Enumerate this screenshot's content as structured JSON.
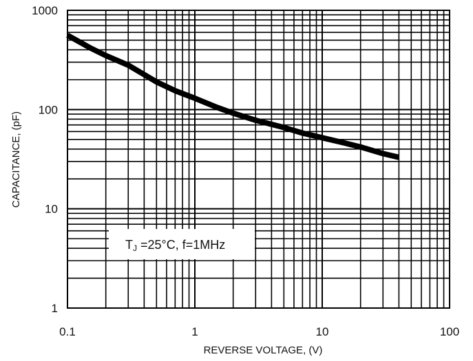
{
  "chart_data": {
    "type": "line",
    "title": "",
    "xlabel": "REVERSE VOLTAGE, (V)",
    "ylabel": "CAPACITANCE, (pF)",
    "xscale": "log",
    "yscale": "log",
    "xlim": [
      0.1,
      100
    ],
    "ylim": [
      1,
      1000
    ],
    "grid": true,
    "x_ticks": [
      "0.1",
      "1",
      "10",
      "100"
    ],
    "y_ticks": [
      "1",
      "10",
      "100",
      "1000"
    ],
    "series": [
      {
        "x": [
          0.1,
          0.15,
          0.2,
          0.3,
          0.5,
          0.7,
          1,
          1.5,
          2,
          3,
          5,
          7,
          10,
          15,
          20,
          30,
          40
        ],
        "y": [
          560,
          420,
          350,
          280,
          190,
          155,
          130,
          105,
          92,
          78,
          66,
          58,
          52,
          46,
          42,
          36,
          33
        ]
      }
    ],
    "annotation": {
      "T": "T",
      "J": "J",
      "rest": " =25°C, f=1MHz"
    },
    "colors": {
      "line": "#000000",
      "grid": "#000000",
      "background": "#ffffff"
    }
  }
}
